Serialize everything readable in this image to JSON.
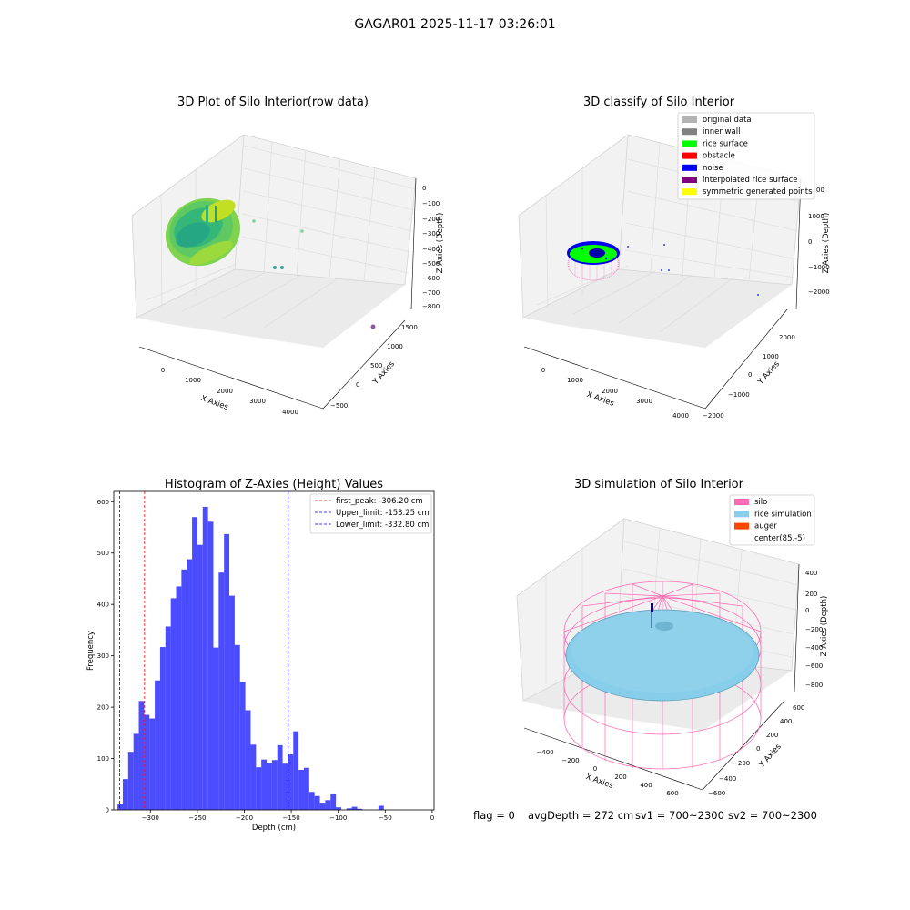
{
  "figure": {
    "suptitle": "GAGAR01 2025-11-17 03:26:01",
    "status": {
      "flag": "flag = 0",
      "avg_depth": "avgDepth = 272 cm",
      "sv1": "sv1 = 700~2300",
      "sv2": "sv2 = 700~2300"
    }
  },
  "panels": {
    "raw": {
      "title": "3D Plot of Silo Interior(row data)",
      "xlabel": "X Axies",
      "ylabel": "Y Axies",
      "zlabel": "Z Axies (Depth)",
      "xticks": [
        "0",
        "1000",
        "2000",
        "3000",
        "4000"
      ],
      "yticks": [
        "−500",
        "0",
        "500",
        "1000",
        "1500"
      ],
      "zticks": [
        "0",
        "−100",
        "−200",
        "−300",
        "−400",
        "−500",
        "−600",
        "−700",
        "−800"
      ]
    },
    "classify": {
      "title": "3D classify of Silo Interior",
      "xlabel": "X Axies",
      "ylabel": "Y Axies",
      "zlabel": "Z Axies (Depth)",
      "xticks": [
        "0",
        "1000",
        "2000",
        "3000",
        "4000"
      ],
      "yticks": [
        "−2000",
        "−1000",
        "0",
        "1000",
        "2000"
      ],
      "zticks": [
        "1000",
        "0",
        "−1000",
        "−2000"
      ],
      "ztick_partial": "00",
      "legend": [
        {
          "label": "original data",
          "color": "#b3b3b3"
        },
        {
          "label": "inner wall",
          "color": "#808080"
        },
        {
          "label": "rice surface",
          "color": "#00ff00"
        },
        {
          "label": "obstacle",
          "color": "#ff0000"
        },
        {
          "label": "noise",
          "color": "#0000ff"
        },
        {
          "label": "interpolated rice surface",
          "color": "#800080"
        },
        {
          "label": "symmetric generated points",
          "color": "#ffff00"
        }
      ]
    },
    "simulation": {
      "title": "3D simulation of Silo Interior",
      "xlabel": "X Axies",
      "ylabel": "Y Axies",
      "zlabel": "Z Axies (Depth)",
      "xticks": [
        "−400",
        "−200",
        "0",
        "200",
        "400",
        "600"
      ],
      "yticks": [
        "−600",
        "−400",
        "−200",
        "0",
        "200",
        "400",
        "600"
      ],
      "zticks": [
        "400",
        "200",
        "0",
        "−200",
        "−400",
        "−600",
        "−800"
      ],
      "legend": [
        {
          "label": "silo",
          "color": "#ff69b4"
        },
        {
          "label": "rice simulation",
          "color": "#87ceeb"
        },
        {
          "label": "auger",
          "color": "#ff4500"
        },
        {
          "label": "center(85,-5)",
          "color": ""
        }
      ]
    }
  },
  "chart_data": [
    {
      "type": "bar",
      "title": "Histogram of Z-Axies (Height) Values",
      "xlabel": "Depth (cm)",
      "ylabel": "Frequency",
      "xlim": [
        -339,
        2
      ],
      "ylim": [
        0,
        620
      ],
      "xticks": [
        -300,
        -250,
        -200,
        -150,
        -100,
        -50,
        0
      ],
      "yticks": [
        0,
        100,
        200,
        300,
        400,
        500,
        600
      ],
      "bin_width": 5.67,
      "bin_start": -335.0,
      "values": [
        12,
        60,
        113,
        148,
        212,
        185,
        178,
        252,
        317,
        357,
        412,
        435,
        468,
        488,
        570,
        516,
        590,
        561,
        316,
        462,
        537,
        417,
        321,
        249,
        194,
        127,
        83,
        98,
        92,
        97,
        126,
        90,
        108,
        153,
        78,
        82,
        35,
        27,
        14,
        19,
        32,
        5,
        0,
        3,
        6,
        2,
        0,
        0,
        0,
        8
      ],
      "bar_color": "#0000ff",
      "bar_alpha": 0.7,
      "vlines": [
        {
          "x": -306.2,
          "label": "first_peak: -306.20 cm",
          "color": "#ff0000"
        },
        {
          "x": -153.25,
          "label": "Upper_limit: -153.25 cm",
          "color": "#0000ff"
        },
        {
          "x": -332.8,
          "label": "Lower_limit: -332.80 cm",
          "color": "#0000ff"
        }
      ],
      "legend_position": "top-right"
    }
  ]
}
